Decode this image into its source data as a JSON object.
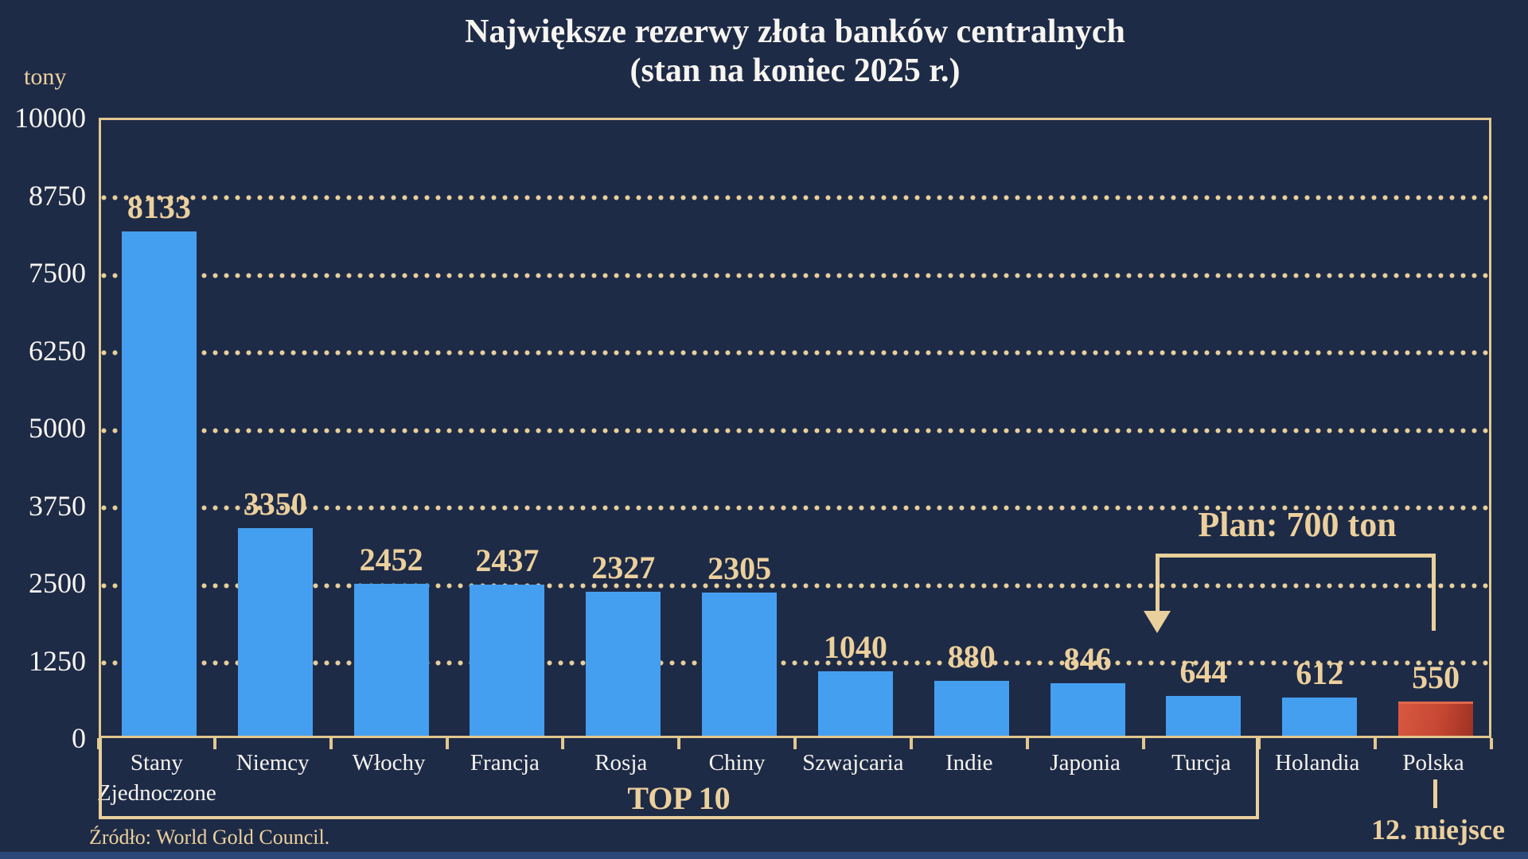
{
  "page": {
    "title_line1": "Największe rezerwy złota banków centralnych",
    "title_line2": "(stan na koniec 2025 r.)",
    "unit_label": "tony"
  },
  "colors": {
    "background": "#1e2b47",
    "gold_accent": "#ecd09c",
    "border_gold": "#e2c78f",
    "text_white": "#f7f5f0",
    "bar_blue": "#459ff0",
    "bar_red": "#c64733",
    "bottom_strip_blue": "#2b4878"
  },
  "chart_data": {
    "type": "bar",
    "title": "Największe rezerwy złota banków centralnych (stan na koniec 2025 r.)",
    "ylabel": "tony",
    "xlabel": "",
    "ylim": [
      0,
      10000
    ],
    "yticks": [
      0,
      1250,
      2500,
      3750,
      5000,
      6250,
      7500,
      8750,
      10000
    ],
    "grid": "horizontal-dotted-gold",
    "categories": [
      "Stany Zjednoczone",
      "Niemcy",
      "Włochy",
      "Francja",
      "Rosja",
      "Chiny",
      "Szwajcaria",
      "Indie",
      "Japonia",
      "Turcja",
      "Holandia",
      "Polska"
    ],
    "values": [
      8133,
      3350,
      2452,
      2437,
      2327,
      2305,
      1040,
      880,
      846,
      644,
      612,
      550
    ],
    "highlight_index": 11,
    "top10_label": "TOP 10",
    "top10_span_categories": [
      "Stany Zjednoczone",
      "Turcja"
    ],
    "plan_label": "Plan: 700 ton",
    "rank_label": "12. miejsce",
    "source": "Źródło: World Gold Council."
  }
}
